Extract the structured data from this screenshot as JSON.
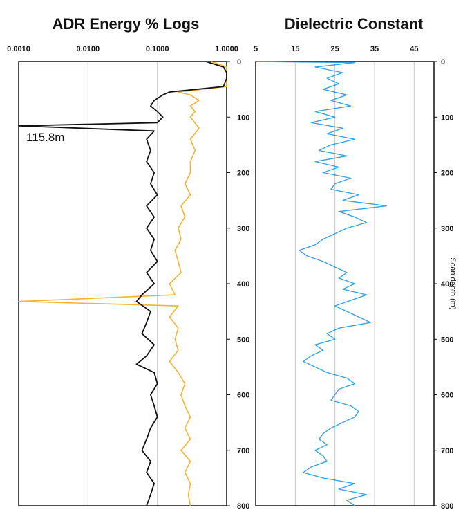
{
  "chart_data": [
    {
      "type": "line",
      "title": "ADR Energy % Logs",
      "x_scale": "log",
      "xlim": [
        0.001,
        1.0
      ],
      "x_tick_labels": [
        "0.0010",
        "0.0100",
        "0.1000",
        "1.0000"
      ],
      "x_ticks": [
        0.001,
        0.01,
        0.1,
        1.0
      ],
      "ylim": [
        0,
        800
      ],
      "y_ticks": [
        0,
        100,
        200,
        300,
        400,
        500,
        600,
        700,
        800
      ],
      "y_inverted": true,
      "grid": "vertical",
      "colors": {
        "series_1": "#111111",
        "series_2": "#f5b335",
        "grid": "#c8c8c8"
      },
      "series": [
        {
          "color": "#111111",
          "depth": [
            0,
            10,
            20,
            30,
            45,
            55,
            60,
            70,
            80,
            90,
            100,
            110,
            115.8,
            125,
            140,
            160,
            180,
            200,
            220,
            240,
            260,
            280,
            300,
            320,
            340,
            360,
            380,
            400,
            420,
            432,
            450,
            470,
            490,
            510,
            530,
            545,
            560,
            580,
            600,
            620,
            640,
            660,
            680,
            700,
            720,
            740,
            760,
            780,
            800
          ],
          "value": [
            0.5,
            0.9,
            1.0,
            1.0,
            0.9,
            0.15,
            0.12,
            0.09,
            0.08,
            0.1,
            0.12,
            0.1,
            0.001,
            0.09,
            0.07,
            0.08,
            0.07,
            0.09,
            0.08,
            0.1,
            0.07,
            0.09,
            0.07,
            0.09,
            0.08,
            0.1,
            0.07,
            0.09,
            0.06,
            0.05,
            0.08,
            0.07,
            0.06,
            0.09,
            0.07,
            0.05,
            0.09,
            0.1,
            0.08,
            0.09,
            0.1,
            0.08,
            0.07,
            0.06,
            0.08,
            0.07,
            0.09,
            0.08,
            0.07
          ]
        },
        {
          "color": "#f5b335",
          "depth": [
            0,
            10,
            20,
            30,
            45,
            55,
            60,
            70,
            80,
            90,
            100,
            120,
            140,
            160,
            180,
            200,
            220,
            240,
            260,
            280,
            300,
            320,
            340,
            360,
            380,
            400,
            420,
            432,
            440,
            460,
            480,
            500,
            520,
            540,
            560,
            580,
            600,
            620,
            640,
            660,
            680,
            700,
            720,
            740,
            760,
            780,
            800
          ],
          "value": [
            0.6,
            1.0,
            1.0,
            1.0,
            1.0,
            0.2,
            0.3,
            0.4,
            0.3,
            0.35,
            0.3,
            0.4,
            0.3,
            0.35,
            0.3,
            0.3,
            0.25,
            0.3,
            0.22,
            0.25,
            0.2,
            0.22,
            0.18,
            0.2,
            0.22,
            0.15,
            0.18,
            0.001,
            0.2,
            0.15,
            0.2,
            0.18,
            0.2,
            0.15,
            0.2,
            0.25,
            0.22,
            0.25,
            0.3,
            0.25,
            0.3,
            0.22,
            0.3,
            0.25,
            0.3,
            0.28,
            0.3
          ]
        }
      ],
      "annotations": [
        {
          "text": "115.8m",
          "depth": 115.8
        }
      ]
    },
    {
      "type": "line",
      "title": "Dielectric Constant",
      "xlim": [
        5,
        50
      ],
      "x_ticks": [
        5,
        15,
        25,
        35,
        45
      ],
      "ylim": [
        0,
        800
      ],
      "y_ticks": [
        0,
        100,
        200,
        300,
        400,
        500,
        600,
        700,
        800
      ],
      "y_inverted": true,
      "ylabel": "Scan depth (m)",
      "grid": "vertical",
      "colors": {
        "series_1": "#3aa3dd",
        "grid": "#c8c8c8"
      },
      "series": [
        {
          "color": "#3aa3dd",
          "depth": [
            0,
            2,
            10,
            20,
            30,
            40,
            50,
            60,
            70,
            80,
            90,
            100,
            110,
            120,
            130,
            140,
            150,
            160,
            170,
            180,
            190,
            200,
            210,
            220,
            230,
            240,
            250,
            260,
            270,
            280,
            290,
            300,
            310,
            320,
            330,
            340,
            350,
            360,
            370,
            380,
            390,
            400,
            410,
            420,
            430,
            440,
            450,
            460,
            470,
            480,
            490,
            500,
            510,
            520,
            530,
            540,
            550,
            560,
            570,
            580,
            590,
            600,
            610,
            620,
            630,
            640,
            650,
            660,
            670,
            680,
            690,
            700,
            710,
            720,
            730,
            740,
            750,
            760,
            770,
            780,
            790,
            800
          ],
          "value": [
            5,
            30,
            20,
            27,
            23,
            26,
            22,
            28,
            24,
            29,
            20,
            25,
            19,
            27,
            23,
            30,
            24,
            21,
            28,
            20,
            26,
            22,
            29,
            25,
            24,
            31,
            27,
            38,
            26,
            30,
            33,
            28,
            25,
            22,
            20,
            16,
            18,
            22,
            25,
            28,
            26,
            30,
            27,
            33,
            29,
            25,
            28,
            31,
            34,
            26,
            23,
            25,
            20,
            22,
            19,
            17,
            20,
            23,
            28,
            30,
            26,
            25,
            24,
            29,
            31,
            30,
            27,
            24,
            22,
            21,
            23,
            20,
            22,
            23,
            19,
            17,
            22,
            30,
            26,
            33,
            28,
            30
          ]
        }
      ]
    }
  ]
}
